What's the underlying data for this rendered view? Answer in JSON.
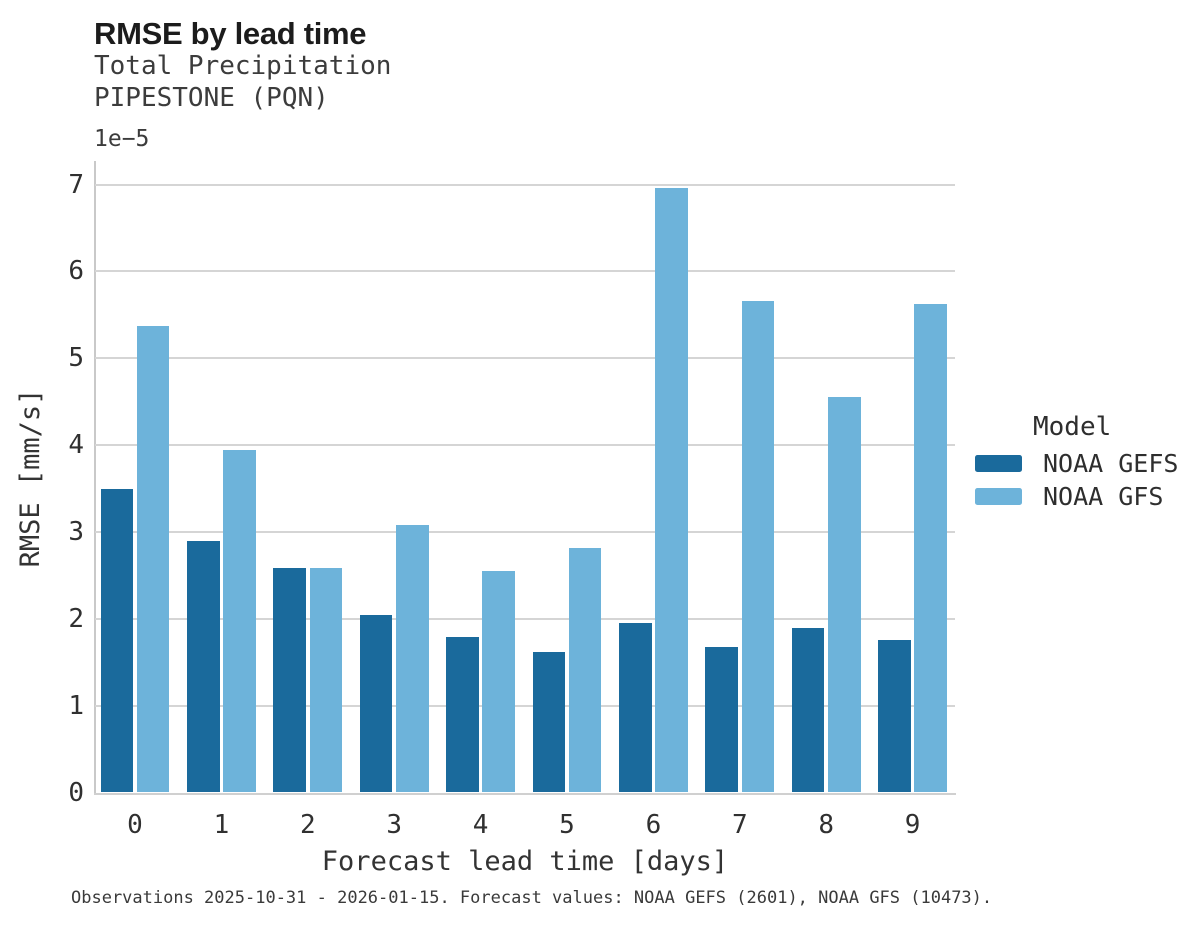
{
  "header": {
    "title": "RMSE by lead time",
    "subtitle1": "Total Precipitation",
    "subtitle2": "PIPESTONE (PQN)"
  },
  "axes": {
    "y_offset_label": "1e−5",
    "xlabel": "Forecast lead time [days]",
    "ylabel": "RMSE [mm/s]"
  },
  "legend": {
    "title": "Model",
    "entries": [
      {
        "label": "NOAA GEFS",
        "color": "#1a6a9c"
      },
      {
        "label": "NOAA GFS",
        "color": "#6db3da"
      }
    ]
  },
  "footer": {
    "note": "Observations 2025-10-31 - 2026-01-15. Forecast values: NOAA GEFS (2601), NOAA GFS (10473)."
  },
  "chart_data": {
    "type": "bar",
    "title": "RMSE by lead time",
    "subtitle": [
      "Total Precipitation",
      "PIPESTONE (PQN)"
    ],
    "categories": [
      "0",
      "1",
      "2",
      "3",
      "4",
      "5",
      "6",
      "7",
      "8",
      "9"
    ],
    "value_units": "mm/s",
    "value_multiplier": "1e-5",
    "series": [
      {
        "name": "NOAA GEFS",
        "color": "#1a6a9c",
        "values": [
          3.5,
          2.9,
          2.58,
          2.04,
          1.79,
          1.62,
          1.95,
          1.68,
          1.89,
          1.76
        ]
      },
      {
        "name": "NOAA GFS",
        "color": "#6db3da",
        "values": [
          5.37,
          3.94,
          2.58,
          3.08,
          2.55,
          2.81,
          6.96,
          5.66,
          4.55,
          5.62
        ]
      }
    ],
    "xlabel": "Forecast lead time [days]",
    "ylabel": "RMSE [mm/s]",
    "ylim": [
      0,
      7.25
    ],
    "yticks": [
      0,
      1,
      2,
      3,
      4,
      5,
      6,
      7
    ],
    "grid": true,
    "legend_title": "Model",
    "legend_position": "right"
  }
}
